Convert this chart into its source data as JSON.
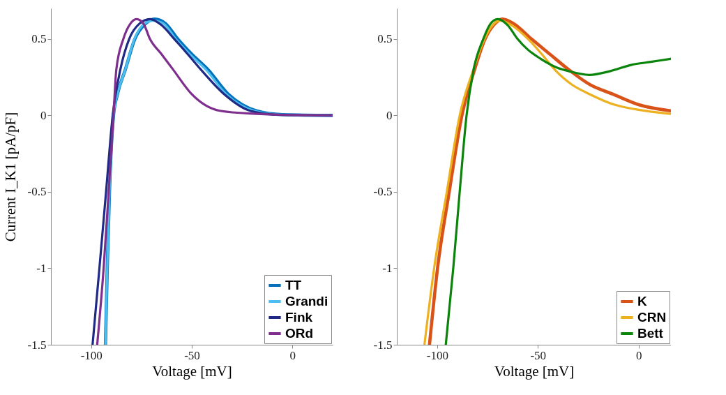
{
  "chart_data": [
    {
      "type": "line",
      "xlabel": "Voltage [mV]",
      "ylabel": "Current I_K1 [pA/pF]",
      "xlim": [
        -120,
        20
      ],
      "xticks": [
        -100,
        -50,
        0
      ],
      "ylim": [
        -1.5,
        0.7
      ],
      "yticks": [
        -1.5,
        -1,
        -0.5,
        0,
        0.5
      ],
      "legend": "bottom right",
      "grid": false,
      "line_style": "solid",
      "marker": "none",
      "series": [
        {
          "name": "TT",
          "color": "#0072bd",
          "x": [
            -92.9,
            -92,
            -90.9,
            -88.9,
            -86.9,
            -83,
            -78.3,
            -73,
            -68.5,
            -63,
            -57,
            -50,
            -42,
            -32,
            -25,
            -18,
            -5,
            20
          ],
          "values": [
            -1.5,
            -1,
            -0.5,
            0,
            0.14,
            0.3,
            0.5,
            0.6,
            0.63,
            0.6,
            0.5,
            0.4,
            0.3,
            0.14,
            0.07,
            0.03,
            0.005,
            0
          ]
        },
        {
          "name": "Grandi",
          "color": "#4dbeee",
          "x": [
            -92.9,
            -92,
            -90.9,
            -88.9,
            -86.9,
            -83,
            -78.5,
            -73.5,
            -69,
            -64,
            -58,
            -51,
            -43,
            -33,
            -26,
            -19,
            -6,
            20
          ],
          "values": [
            -1.5,
            -1,
            -0.5,
            0,
            0.14,
            0.3,
            0.5,
            0.6,
            0.62,
            0.6,
            0.5,
            0.4,
            0.3,
            0.14,
            0.07,
            0.03,
            0.005,
            0
          ]
        },
        {
          "name": "Fink",
          "color": "#1f2a86",
          "x": [
            -99.3,
            -95.9,
            -92.6,
            -89.3,
            -85.5,
            -81.1,
            -76,
            -70.8,
            -65,
            -58.7,
            -52,
            -45.5,
            -34,
            -21,
            -8,
            20
          ],
          "values": [
            -1.5,
            -1,
            -0.5,
            0,
            0.3,
            0.5,
            0.6,
            0.63,
            0.59,
            0.5,
            0.4,
            0.3,
            0.14,
            0.03,
            0.005,
            0
          ]
        },
        {
          "name": "ORd",
          "color": "#7e2f8e",
          "x": [
            -97,
            -93.8,
            -91.3,
            -88.9,
            -87.5,
            -84,
            -80.5,
            -77.5,
            -74,
            -70.8,
            -65,
            -59.3,
            -50.1,
            -36,
            -18,
            0,
            20
          ],
          "values": [
            -1.5,
            -1,
            -0.5,
            0,
            0.3,
            0.5,
            0.6,
            0.63,
            0.6,
            0.5,
            0.4,
            0.3,
            0.14,
            0.03,
            0.01,
            0.002,
            0
          ]
        }
      ]
    },
    {
      "type": "line",
      "xlabel": "Voltage [mV]",
      "xlim": [
        -120,
        16
      ],
      "xticks": [
        -100,
        -50,
        0
      ],
      "ylim": [
        -1.5,
        0.7
      ],
      "yticks": [
        -1.5,
        -1,
        -0.5,
        0,
        0.5
      ],
      "legend": "bottom right",
      "grid": false,
      "line_style": "solid",
      "marker": "none",
      "series": [
        {
          "name": "K",
          "color": "#d95319",
          "x": [
            -103.8,
            -99.8,
            -94,
            -87.7,
            -81.4,
            -76.2,
            -72,
            -67.6,
            -62,
            -53.2,
            -44,
            -34.8,
            -24,
            -13,
            0,
            15.8
          ],
          "values": [
            -1.5,
            -1,
            -0.5,
            0,
            0.3,
            0.5,
            0.59,
            0.63,
            0.6,
            0.5,
            0.4,
            0.3,
            0.2,
            0.14,
            0.07,
            0.03
          ]
        },
        {
          "name": "CRN",
          "color": "#edb120",
          "x": [
            -106.3,
            -101.5,
            -95.2,
            -88.8,
            -82,
            -76.5,
            -72.5,
            -68.7,
            -63,
            -54.9,
            -48,
            -41.7,
            -33,
            -24.5,
            -12,
            -1.5,
            15.8
          ],
          "values": [
            -1.5,
            -1,
            -0.5,
            0,
            0.3,
            0.5,
            0.59,
            0.62,
            0.59,
            0.5,
            0.4,
            0.3,
            0.2,
            0.14,
            0.07,
            0.04,
            0.01
          ]
        },
        {
          "name": "Bett",
          "color": "#0b840b",
          "x": [
            -95.7,
            -92,
            -88.8,
            -85.4,
            -81.9,
            -77.1,
            -73.5,
            -69.9,
            -65,
            -60.1,
            -55,
            -48.6,
            -40,
            -34.8,
            -24.5,
            -14,
            -3.8,
            6,
            15.8
          ],
          "values": [
            -1.5,
            -1,
            -0.5,
            0,
            0.3,
            0.5,
            0.6,
            0.63,
            0.59,
            0.5,
            0.43,
            0.37,
            0.31,
            0.29,
            0.265,
            0.29,
            0.33,
            0.35,
            0.37
          ]
        }
      ]
    }
  ]
}
